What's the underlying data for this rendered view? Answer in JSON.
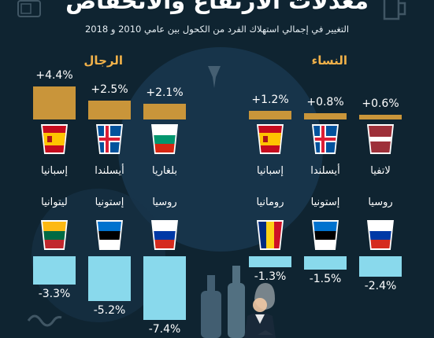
{
  "title": "معدلات الارتفاع والانخفاض",
  "subtitle": "التغيير في إجمالي استهلاك الفرد من الكحول بين عامي 2010 و 2018",
  "colors": {
    "background": "#0f2431",
    "increase": "#c9953a",
    "decrease": "#89d9ec",
    "label": "#f2b24a"
  },
  "chart_data": [
    {
      "type": "bar",
      "group": "الرجال",
      "increase": {
        "categories": [
          "إسبانيا",
          "أيسلندا",
          "بلغاريا"
        ],
        "values": [
          4.4,
          2.5,
          2.1
        ],
        "labels": [
          "+4.4%",
          "+2.5%",
          "+2.1%"
        ]
      },
      "decrease": {
        "categories": [
          "ليتوانيا",
          "إستونيا",
          "روسيا"
        ],
        "values": [
          -3.3,
          -5.2,
          -7.4
        ],
        "labels": [
          "-3.3%",
          "-5.2%",
          "-7.4%"
        ]
      }
    },
    {
      "type": "bar",
      "group": "النساء",
      "increase": {
        "categories": [
          "إسبانيا",
          "أيسلندا",
          "لاتفيا"
        ],
        "values": [
          1.2,
          0.8,
          0.6
        ],
        "labels": [
          "+1.2%",
          "+0.8%",
          "+0.6%"
        ]
      },
      "decrease": {
        "categories": [
          "رومانيا",
          "إستونيا",
          "روسيا"
        ],
        "values": [
          -1.3,
          -1.5,
          -2.4
        ],
        "labels": [
          "-1.3%",
          "-1.5%",
          "-2.4%"
        ]
      }
    }
  ],
  "flags": {
    "men_up": [
      "spain-flag",
      "iceland-flag",
      "bulgaria-flag"
    ],
    "men_down": [
      "lithuania-flag",
      "estonia-flag",
      "russia-flag"
    ],
    "women_up": [
      "spain-flag",
      "iceland-flag",
      "latvia-flag"
    ],
    "women_down": [
      "romania-flag",
      "estonia-flag",
      "russia-flag"
    ]
  }
}
